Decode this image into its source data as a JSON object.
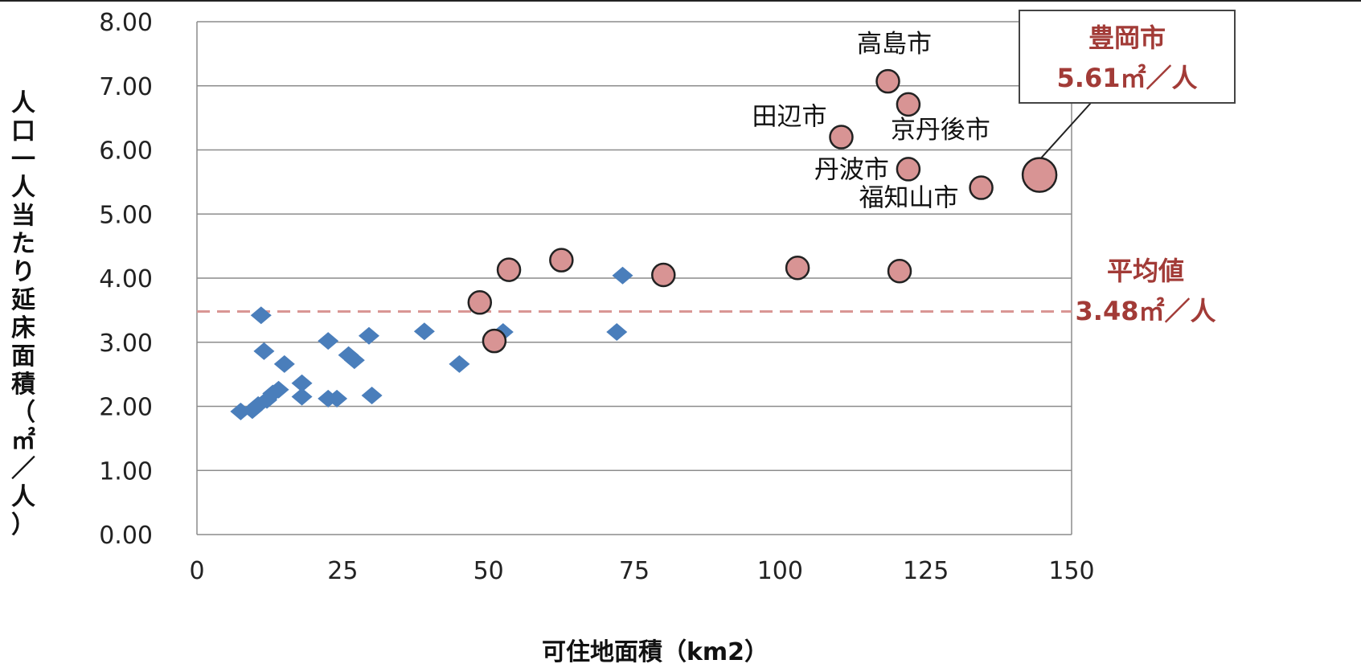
{
  "chart_data": {
    "type": "scatter",
    "xlabel": "可住地面積（km2）",
    "ylabel": "人口一人当たり延床面積（㎡／人）",
    "xlim": [
      0,
      150
    ],
    "ylim": [
      0,
      8
    ],
    "x_ticks": [
      "0",
      "25",
      "50",
      "75",
      "100",
      "125",
      "150"
    ],
    "y_ticks": [
      "0.00",
      "1.00",
      "2.00",
      "3.00",
      "4.00",
      "5.00",
      "6.00",
      "7.00",
      "8.00"
    ],
    "grid": "horizontal",
    "colors": {
      "diamond": "#4a7ebb",
      "circle": "#d89494",
      "reference_line": "#d99694",
      "note": "#a23b37"
    },
    "series": [
      {
        "marker": "diamond",
        "points": [
          {
            "x": 7.5,
            "y": 1.92
          },
          {
            "x": 9.5,
            "y": 1.94
          },
          {
            "x": 10.5,
            "y": 2.02
          },
          {
            "x": 12,
            "y": 2.1
          },
          {
            "x": 13,
            "y": 2.2
          },
          {
            "x": 14,
            "y": 2.26
          },
          {
            "x": 11,
            "y": 3.42
          },
          {
            "x": 11.5,
            "y": 2.86
          },
          {
            "x": 15,
            "y": 2.66
          },
          {
            "x": 18,
            "y": 2.36
          },
          {
            "x": 18,
            "y": 2.15
          },
          {
            "x": 22.5,
            "y": 3.02
          },
          {
            "x": 22.5,
            "y": 2.12
          },
          {
            "x": 24,
            "y": 2.12
          },
          {
            "x": 26,
            "y": 2.8
          },
          {
            "x": 27,
            "y": 2.72
          },
          {
            "x": 29.5,
            "y": 3.1
          },
          {
            "x": 30,
            "y": 2.17
          },
          {
            "x": 39,
            "y": 3.17
          },
          {
            "x": 45,
            "y": 2.66
          },
          {
            "x": 52.5,
            "y": 3.16
          },
          {
            "x": 72,
            "y": 3.16
          },
          {
            "x": 73,
            "y": 4.04
          }
        ]
      },
      {
        "marker": "circle",
        "points": [
          {
            "x": 48.5,
            "y": 3.62
          },
          {
            "x": 51,
            "y": 3.02
          },
          {
            "x": 53.5,
            "y": 4.13
          },
          {
            "x": 62.5,
            "y": 4.28
          },
          {
            "x": 80,
            "y": 4.05
          },
          {
            "x": 103,
            "y": 4.16
          },
          {
            "x": 120.5,
            "y": 4.11
          },
          {
            "x": 118.5,
            "y": 7.07,
            "label": "高島市"
          },
          {
            "x": 122,
            "y": 6.71,
            "label": "京丹後市"
          },
          {
            "x": 110.5,
            "y": 6.2,
            "label": "田辺市"
          },
          {
            "x": 122,
            "y": 5.7,
            "label": "丹波市"
          },
          {
            "x": 134.5,
            "y": 5.41,
            "label": "福知山市"
          },
          {
            "x": 144.5,
            "y": 5.61,
            "label": "豊岡市",
            "highlight": true
          }
        ]
      }
    ],
    "reference_line": {
      "y": 3.48,
      "label": "平均値",
      "value_text": "3.48㎡／人"
    },
    "callout": {
      "label": "豊岡市",
      "value_text": "5.61㎡／人"
    }
  }
}
